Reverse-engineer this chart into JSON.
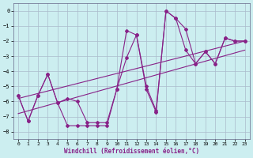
{
  "xlabel": "Windchill (Refroidissement éolien,°C)",
  "bg_color": "#cceef0",
  "grid_color": "#aabbcc",
  "line_color": "#882288",
  "xlim": [
    -0.5,
    23.5
  ],
  "ylim": [
    -8.5,
    0.5
  ],
  "xticks": [
    0,
    1,
    2,
    3,
    4,
    5,
    6,
    7,
    8,
    9,
    10,
    11,
    12,
    13,
    14,
    15,
    16,
    17,
    18,
    19,
    20,
    21,
    22,
    23
  ],
  "yticks": [
    0,
    -1,
    -2,
    -3,
    -4,
    -5,
    -6,
    -7,
    -8
  ],
  "curve1_x": [
    0,
    1,
    2,
    3,
    4,
    5,
    6,
    7,
    8,
    9,
    10,
    11,
    12,
    13,
    14,
    15,
    16,
    17,
    18,
    19,
    20,
    21,
    22,
    23
  ],
  "curve1_y": [
    -5.6,
    -7.3,
    -5.6,
    -4.2,
    -6.1,
    -7.6,
    -7.6,
    -7.6,
    -7.6,
    -7.6,
    -5.2,
    -1.3,
    -1.6,
    -5.0,
    -6.6,
    0.0,
    -0.5,
    -1.2,
    -3.5,
    -2.7,
    -3.5,
    -1.8,
    -2.0,
    -2.0
  ],
  "curve2_x": [
    0,
    1,
    2,
    3,
    4,
    5,
    6,
    7,
    8,
    9,
    10,
    11,
    12,
    13,
    14,
    15,
    16,
    17,
    18,
    19,
    20,
    21,
    22,
    23
  ],
  "curve2_y": [
    -5.6,
    -7.3,
    -5.6,
    -4.2,
    -6.1,
    -5.8,
    -6.0,
    -7.4,
    -7.4,
    -7.4,
    -5.2,
    -3.1,
    -1.6,
    -5.2,
    -6.7,
    0.0,
    -0.5,
    -2.6,
    -3.5,
    -2.7,
    -3.5,
    -1.8,
    -2.0,
    -2.0
  ],
  "trend1_x": [
    0,
    23
  ],
  "trend1_y": [
    -5.8,
    -2.0
  ],
  "trend2_x": [
    0,
    23
  ],
  "trend2_y": [
    -6.8,
    -2.6
  ]
}
